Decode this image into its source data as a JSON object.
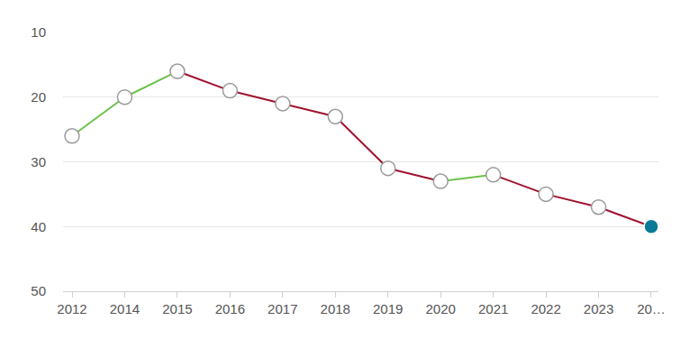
{
  "chart_data": {
    "type": "line",
    "categories": [
      "2012",
      "2014",
      "2015",
      "2016",
      "2017",
      "2018",
      "2019",
      "2020",
      "2021",
      "2022",
      "2023",
      "20…"
    ],
    "values": [
      26,
      20,
      16,
      19,
      21,
      23,
      31,
      33,
      32,
      35,
      37,
      40
    ],
    "color": "#a0132f",
    "colors": [
      "#ffffff",
      "#ffffff",
      "#ffffff",
      "#ffffff",
      "#ffffff",
      "#ffffff",
      "#ffffff",
      "#ffffff",
      "#ffffff",
      "#ffffff",
      "#ffffff",
      "#0b7a99"
    ],
    "marker": "circle",
    "ylim": [
      50,
      10
    ],
    "yticks": [
      10,
      20,
      30,
      40,
      50
    ],
    "grid": true
  }
}
